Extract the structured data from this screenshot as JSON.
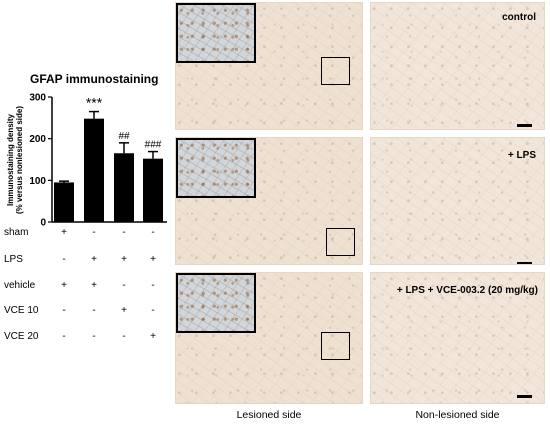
{
  "chart_data": {
    "type": "bar",
    "title": "GFAP immunostaining",
    "ylabel_line1": "Immunostaining density",
    "ylabel_line2": "(% versus nonlesioned side)",
    "ylim": [
      0,
      300
    ],
    "yticks": [
      "0",
      "100",
      "200",
      "300"
    ],
    "groups": [
      "1",
      "2",
      "3",
      "4"
    ],
    "values": [
      95,
      248,
      165,
      152
    ],
    "errors": [
      3,
      17,
      25,
      17
    ],
    "colors": [
      "#000000"
    ],
    "significance": [
      "",
      "***",
      "##",
      "###"
    ],
    "conditions": [
      {
        "label": "sham",
        "marks": [
          "+",
          "-",
          "-",
          "-"
        ]
      },
      {
        "label": "LPS",
        "marks": [
          "-",
          "+",
          "+",
          "+"
        ]
      },
      {
        "label": "vehicle",
        "marks": [
          "+",
          "+",
          "-",
          "-"
        ]
      },
      {
        "label": "VCE 10",
        "marks": [
          "-",
          "-",
          "+",
          "-"
        ]
      },
      {
        "label": "VCE 20",
        "marks": [
          "-",
          "-",
          "-",
          "+"
        ]
      }
    ]
  },
  "panels": {
    "row_labels": [
      "control",
      "+ LPS",
      "+ LPS + VCE-003.2 (20 mg/kg)"
    ],
    "column_labels": [
      "Lesioned side",
      "Non-lesioned side"
    ]
  }
}
